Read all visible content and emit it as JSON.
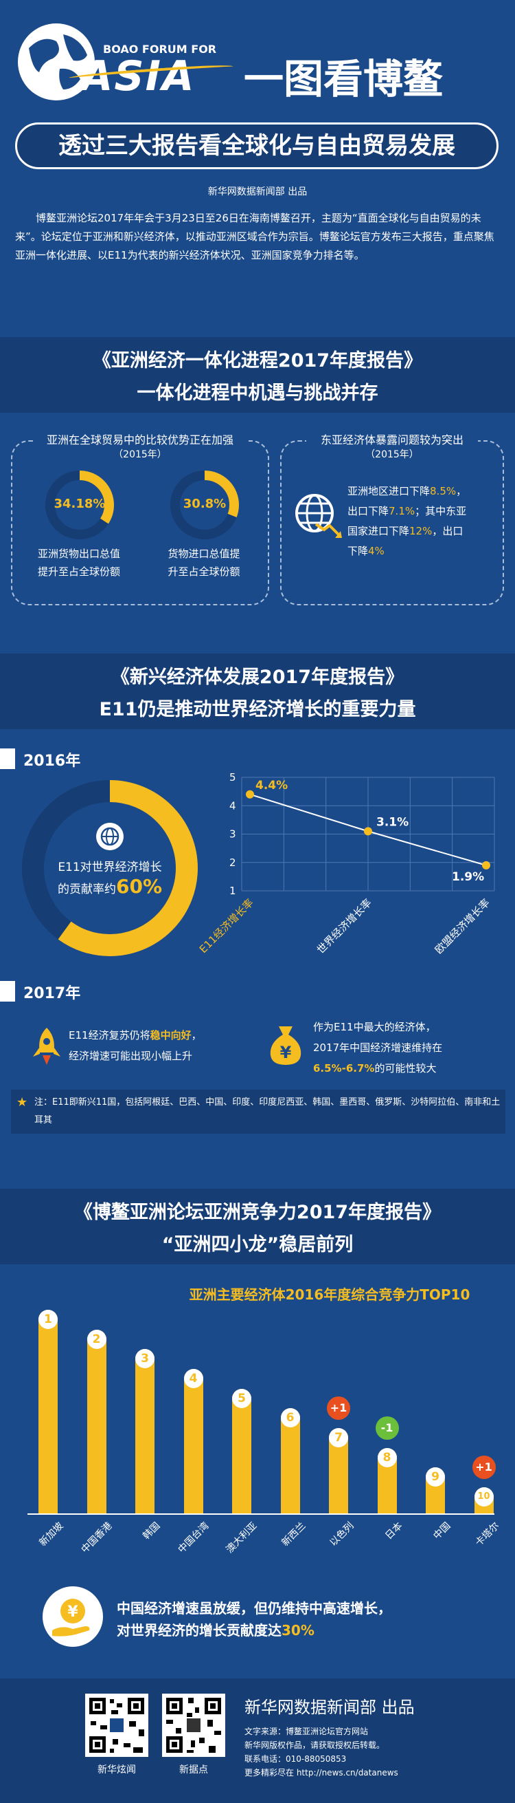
{
  "header": {
    "logo_line1": "BOAO FORUM FOR",
    "logo_line2": "ASIA",
    "title": "一图看博鳌",
    "subtitle": "透过三大报告看全球化与自由贸易发展",
    "producer": "新华网数据新闻部 出品",
    "intro": "博鳌亚洲论坛2017年年会于3月23日至26日在海南博鳌召开，主题为“直面全球化与自由贸易的未来”。论坛定位于亚洲和新兴经济体，以推动亚洲区域合作为宗旨。博鳌论坛官方发布三大报告，重点聚焦亚洲一体化进展、以E11为代表的新兴经济体状况、亚洲国家竞争力排名等。"
  },
  "section1": {
    "title": "《亚洲经济一体化进程2017年度报告》",
    "subtitle": "一体化进程中机遇与挑战并存",
    "left_box": {
      "heading": "亚洲在全球贸易中的比较优势正在加强",
      "year": "（2015年）",
      "ring1": {
        "value": "34.18%",
        "fraction": 0.3418,
        "caption1": "亚洲货物出口总值",
        "caption2": "提升至占全球份额"
      },
      "ring2": {
        "value": "30.8%",
        "fraction": 0.308,
        "caption1": "货物进口总值提",
        "caption2": "升至占全球份额"
      }
    },
    "right_box": {
      "heading": "东亚经济体暴露问题较为突出",
      "year": "（2015年）",
      "t1": "亚洲地区进口下降",
      "v1": "8.5%",
      "t2": "，",
      "t3": "出口下降",
      "v2": "7.1%",
      "t4": "；其中东亚",
      "t5": "国家进口下降",
      "v3": "12%",
      "t6": "，出口",
      "t7": "下降",
      "v4": "4%"
    }
  },
  "section2": {
    "title": "《新兴经济体发展2017年度报告》",
    "subtitle": "E11仍是推动世界经济增长的重要力量",
    "year2016": "2016年",
    "ring": {
      "fraction": 0.6,
      "label1": "E11对世界经济增长",
      "label2": "的贡献率约",
      "value": "60%"
    },
    "year2017": "2017年",
    "item1": {
      "t1": "E11经济复苏仍将",
      "v": "稳中向好",
      "t2": "，",
      "t3": "经济增速可能出现小幅上升"
    },
    "item2": {
      "t1": "作为E11中最大的经济体，",
      "t2": "2017年中国经济增速维持在",
      "v": "6.5%-6.7%",
      "t3": "的可能性较大"
    },
    "note": "注：E11即新兴11国，包括阿根廷、巴西、中国、印度、印度尼西亚、韩国、墨西哥、俄罗斯、沙特阿拉伯、南非和土耳其"
  },
  "chart_data": [
    {
      "type": "line",
      "categories": [
        "E11经济增长率",
        "世界经济增长率",
        "欧盟经济增长率"
      ],
      "values": [
        4.4,
        3.1,
        1.9
      ],
      "data_labels": [
        "4.4%",
        "3.1%",
        "1.9%"
      ],
      "yticks": [
        "1",
        "2",
        "3",
        "4",
        "5"
      ],
      "ylim": [
        1,
        5
      ],
      "grid": true
    },
    {
      "type": "bar",
      "title": "亚洲主要经济体2016年度综合竞争力TOP10",
      "categories": [
        "新加坡",
        "中国香港",
        "韩国",
        "中国台湾",
        "澳大利亚",
        "新西兰",
        "以色列",
        "日本",
        "中国",
        "卡塔尔"
      ],
      "ranks": [
        "1",
        "2",
        "3",
        "4",
        "5",
        "6",
        "7",
        "8",
        "9",
        "10"
      ],
      "rank_values": [
        1,
        2,
        3,
        4,
        5,
        6,
        7,
        8,
        9,
        10
      ],
      "changes": [
        null,
        null,
        null,
        null,
        null,
        null,
        "+1",
        "-1",
        null,
        "+1"
      ]
    }
  ],
  "section3": {
    "title": "《博鳌亚洲论坛亚洲竞争力2017年度报告》",
    "subtitle": "“亚洲四小龙”稳居前列",
    "conclusion1": "中国经济增速虽放缓，但仍维持中高速增长，",
    "conclusion2": "对世界经济的增长贡献度达",
    "conclusion_value": "30%"
  },
  "footer": {
    "qr1_label": "新华炫闻",
    "qr2_label": "新据点",
    "producer": "新华网数据新闻部 出品",
    "source": "文字来源：博鳌亚洲论坛官方网站",
    "copyright": "新华网版权作品，请获取授权后转载。",
    "phone": "联系电话：010-88050853",
    "more": "更多精彩尽在 http://news.cn/datanews"
  },
  "colors": {
    "background": "#1b4a8a",
    "banner": "#163d74",
    "accent": "#f6bd20",
    "orange": "#e8511f",
    "green": "#6cbf3a"
  }
}
